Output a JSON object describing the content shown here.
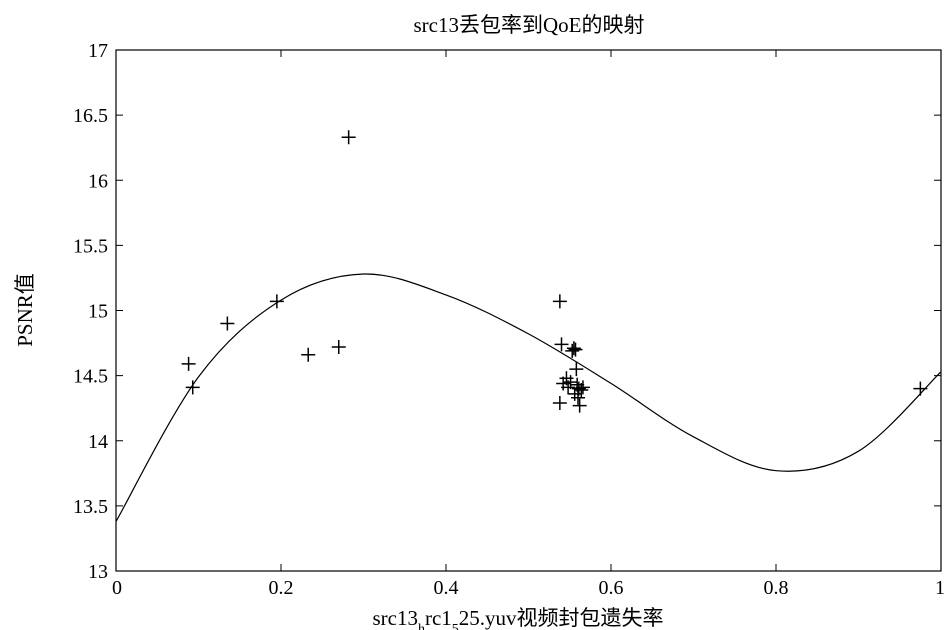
{
  "chart_data": {
    "type": "scatter",
    "title": "src13丢包率到QoE的映射",
    "xlabel": "src13_hrc1_525.yuv视频封包遗失率",
    "xlabel_parts": [
      {
        "text": "src13",
        "sub": false
      },
      {
        "text": "h",
        "sub": true
      },
      {
        "text": "rc1",
        "sub": false
      },
      {
        "text": "5",
        "sub": true
      },
      {
        "text": "25.yuv视频封包遗失率",
        "sub": false
      }
    ],
    "ylabel": "PSNR值",
    "xlim": [
      0,
      1
    ],
    "ylim": [
      13,
      17
    ],
    "xticks": [
      "0",
      "0.2",
      "0.4",
      "0.6",
      "0.8",
      "1"
    ],
    "yticks": [
      "13",
      "13.5",
      "14",
      "14.5",
      "15",
      "15.5",
      "16",
      "16.5",
      "17"
    ],
    "grid": false,
    "series": [
      {
        "marker": "plus",
        "points": [
          [
            0.088,
            14.59
          ],
          [
            0.093,
            14.41
          ],
          [
            0.135,
            14.9
          ],
          [
            0.195,
            15.07
          ],
          [
            0.233,
            14.66
          ],
          [
            0.27,
            14.72
          ],
          [
            0.282,
            16.33
          ],
          [
            0.538,
            15.07
          ],
          [
            0.54,
            14.74
          ],
          [
            0.538,
            14.29
          ],
          [
            0.542,
            14.44
          ],
          [
            0.546,
            14.48
          ],
          [
            0.548,
            14.41
          ],
          [
            0.551,
            14.45
          ],
          [
            0.553,
            14.69
          ],
          [
            0.555,
            14.71
          ],
          [
            0.556,
            14.36
          ],
          [
            0.557,
            14.7
          ],
          [
            0.558,
            14.55
          ],
          [
            0.559,
            14.43
          ],
          [
            0.56,
            14.33
          ],
          [
            0.561,
            14.4
          ],
          [
            0.562,
            14.27
          ],
          [
            0.564,
            14.39
          ],
          [
            0.566,
            14.41
          ],
          [
            0.975,
            14.4
          ]
        ]
      },
      {
        "line": "solid",
        "fit": "cubic",
        "points": [
          [
            0.0,
            13.38
          ],
          [
            0.1,
            14.49
          ],
          [
            0.2,
            15.08
          ],
          [
            0.3,
            15.28
          ],
          [
            0.4,
            15.12
          ],
          [
            0.5,
            14.82
          ],
          [
            0.6,
            14.44
          ],
          [
            0.7,
            14.03
          ],
          [
            0.8,
            13.77
          ],
          [
            0.9,
            13.92
          ],
          [
            1.0,
            14.53
          ]
        ]
      }
    ]
  }
}
